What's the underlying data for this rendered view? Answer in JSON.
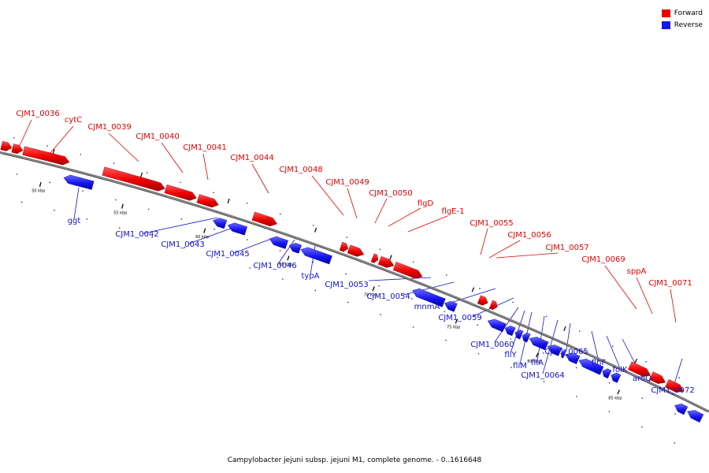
{
  "legend": {
    "forward_label": "Forward",
    "reverse_label": "Reverse",
    "forward_color": "#ee0000",
    "reverse_color": "#1515ee"
  },
  "caption": "Campylobacter jejuni subsp. jejuni M1, complete genome. - 0..1616648",
  "colors": {
    "forward_label": "#e00000",
    "reverse_label": "#1010d0",
    "backbone": "#808080",
    "tick": "#000000"
  },
  "ticks": [
    "50 kbp",
    "55 kbp",
    "60 kbp",
    "65 kbp",
    "70 kbp",
    "75 kbp",
    "80 kbp",
    "85 kbp"
  ],
  "genes": {
    "forward": [
      "CJM1_0036",
      "cytC",
      "CJM1_0039",
      "CJM1_0040",
      "CJM1_0041",
      "CJM1_0044",
      "CJM1_0048",
      "CJM1_0049",
      "CJM1_0050",
      "flgD",
      "flgE-1",
      "CJM1_0055",
      "CJM1_0056",
      "CJM1_0057",
      "CJM1_0069",
      "sppA",
      "CJM1_0071"
    ],
    "reverse": [
      "ggt",
      "CJM1_0042",
      "CJM1_0043",
      "CJM1_0045",
      "CJM1_0046",
      "typA",
      "CJM1_0053",
      "CJM1_0054",
      "mnmA",
      "CJM1_0059",
      "CJM1_0060",
      "fliY",
      "fliM",
      "fliA",
      "CJM1_0064",
      "CJM1_0065",
      "flhF",
      "folK",
      "aroQ",
      "CJM1_0072"
    ]
  }
}
